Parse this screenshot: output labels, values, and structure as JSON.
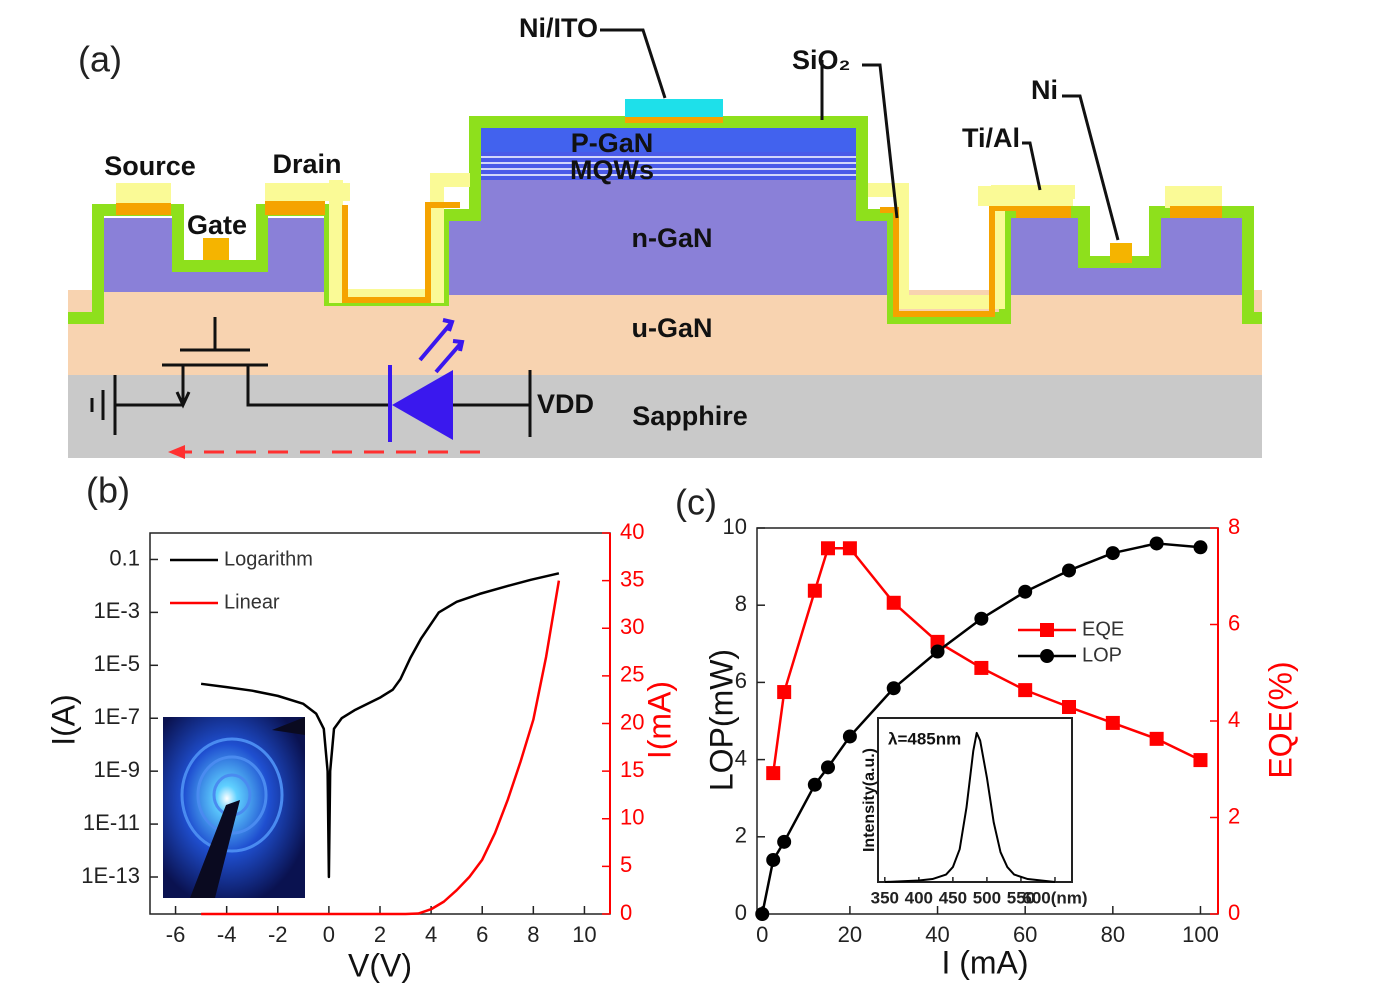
{
  "panel_a": {
    "label": "(a)",
    "layers": {
      "p_gan": "P-GaN",
      "mqws": "MQWs",
      "n_gan": "n-GaN",
      "u_gan": "u-GaN",
      "sapphire": "Sapphire"
    },
    "callouts": {
      "ni_ito": "Ni/ITO",
      "sio2": "SiO₂",
      "ni": "Ni",
      "ti_al": "Ti/Al"
    },
    "terminals": {
      "source": "Source",
      "drain": "Drain",
      "gate": "Gate",
      "vdd": "VDD"
    }
  },
  "chart_data": [
    {
      "type": "line",
      "panel": "(b)",
      "xlabel": "V(V)",
      "ylabel": "I(A)",
      "y2label": "I(mA)",
      "xlim": [
        -7,
        11
      ],
      "xticks": [
        -6,
        -4,
        -2,
        0,
        2,
        4,
        6,
        8,
        10
      ],
      "ylim": [
        4e-15,
        1
      ],
      "yscale": "log",
      "yticks": [
        0.1,
        {
          "value": 0.001,
          "label": "1E-3"
        },
        {
          "value": 1e-05,
          "label": "1E-5"
        },
        {
          "value": 1e-07,
          "label": "1E-7"
        },
        {
          "value": 1e-09,
          "label": "1E-9"
        },
        {
          "value": 1e-11,
          "label": "1E-11"
        },
        {
          "value": 1e-13,
          "label": "1E-13"
        }
      ],
      "y2lim": [
        0,
        40
      ],
      "y2ticks": [
        0,
        5,
        10,
        15,
        20,
        25,
        30,
        35,
        40
      ],
      "y2color": "#ff0000",
      "legend": "upper left",
      "series": [
        {
          "name": "Logarithm",
          "color": "#000000",
          "x": [
            -5,
            -4,
            -3,
            -2,
            -1,
            -0.5,
            -0.2,
            -0.05,
            0,
            0.05,
            0.2,
            0.5,
            1,
            2,
            2.5,
            2.8,
            3.2,
            3.6,
            4.3,
            5,
            5.9,
            7,
            7.9,
            9
          ],
          "values": [
            2e-06,
            1.5e-06,
            1.1e-06,
            7e-07,
            3.5e-07,
            1.5e-07,
            4e-08,
            1e-09,
            1e-13,
            1e-09,
            4e-08,
            1e-07,
            2e-07,
            6e-07,
            1.2e-06,
            3e-06,
            2e-05,
            0.0001,
            0.001,
            0.0025,
            0.005,
            0.01,
            0.017,
            0.03
          ]
        },
        {
          "name": "Linear",
          "color": "#ff0000",
          "axis": "y2",
          "x": [
            -5,
            -2,
            0,
            2,
            3,
            3.5,
            4,
            4.5,
            5,
            5.5,
            6,
            6.5,
            7,
            7.5,
            8,
            8.5,
            9
          ],
          "values": [
            0,
            0,
            0,
            0,
            0,
            0.05,
            0.5,
            1.3,
            2.5,
            3.9,
            5.7,
            8.5,
            12,
            16,
            20.4,
            27,
            35
          ]
        }
      ]
    },
    {
      "type": "line",
      "panel": "(c)",
      "xlabel": "I (mA)",
      "ylabel": "LOP(mW)",
      "y2label": "EQE(%)",
      "xlim": [
        -1.2,
        104
      ],
      "xticks": [
        0,
        20,
        40,
        60,
        80,
        100
      ],
      "ylim": [
        0,
        10
      ],
      "yticks": [
        0,
        2,
        4,
        6,
        8,
        10
      ],
      "y2lim": [
        0,
        8
      ],
      "y2ticks": [
        0,
        2,
        4,
        6,
        8
      ],
      "y2color": "#ff0000",
      "legend": "center right",
      "series": [
        {
          "name": "EQE",
          "color": "#ff0000",
          "axis": "y2",
          "marker": "square",
          "x": [
            2.5,
            5,
            12,
            15,
            20,
            30,
            40,
            50,
            60,
            70,
            80,
            90,
            100
          ],
          "values": [
            2.92,
            4.6,
            6.7,
            7.58,
            7.58,
            6.45,
            5.64,
            5.1,
            4.64,
            4.29,
            3.96,
            3.63,
            3.19
          ]
        },
        {
          "name": "LOP",
          "color": "#000000",
          "marker": "circle",
          "x": [
            0,
            2.5,
            5,
            12,
            15,
            20,
            30,
            40,
            50,
            60,
            70,
            80,
            90,
            100
          ],
          "values": [
            0,
            1.4,
            1.87,
            3.35,
            3.8,
            4.6,
            5.85,
            6.8,
            7.65,
            8.35,
            8.9,
            9.35,
            9.6,
            9.5
          ]
        }
      ]
    },
    {
      "type": "line",
      "ylabel": "Intensity(a.u.)",
      "annotation": "λ=485nm",
      "xlim": [
        340,
        625
      ],
      "xticks": [
        350,
        400,
        450,
        500,
        550,
        {
          "value": 600,
          "label": "600(nm)"
        }
      ],
      "ylim": [
        0,
        1.1
      ],
      "series": [
        {
          "color": "#000000",
          "x": [
            350,
            400,
            420,
            440,
            450,
            460,
            470,
            480,
            485,
            490,
            500,
            510,
            520,
            530,
            540,
            560,
            600
          ],
          "values": [
            0,
            0.01,
            0.02,
            0.05,
            0.1,
            0.22,
            0.5,
            0.88,
            1,
            0.95,
            0.7,
            0.4,
            0.2,
            0.1,
            0.05,
            0.02,
            0
          ]
        }
      ]
    }
  ]
}
